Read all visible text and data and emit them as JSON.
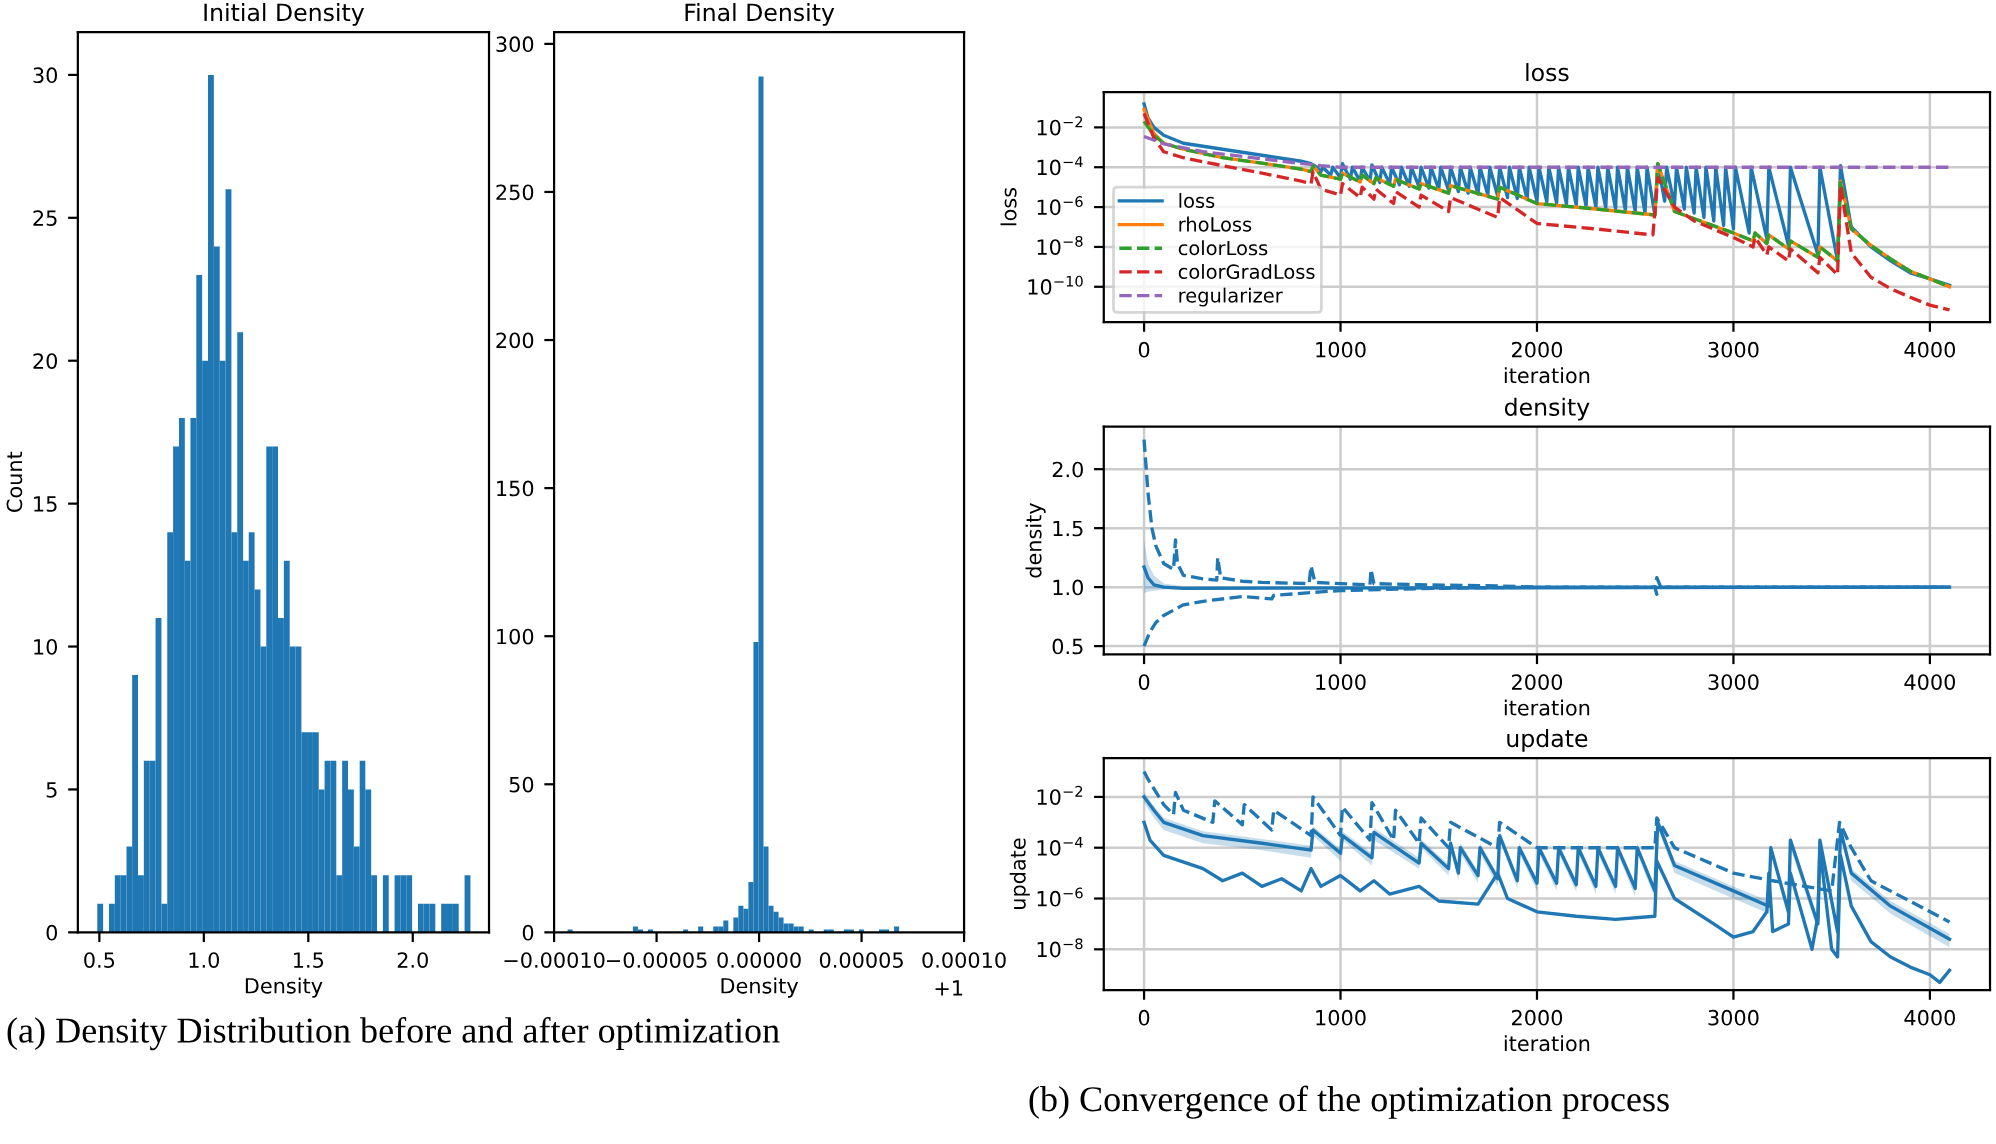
{
  "chart_data": [
    {
      "type": "histogram",
      "title": "Initial Density",
      "xlabel": "Density",
      "ylabel": "Count",
      "color": "#1f77b4",
      "grid": false,
      "bins": [
        0.49,
        0.518,
        0.546,
        0.574,
        0.602,
        0.63,
        0.657,
        0.685,
        0.713,
        0.741,
        0.769,
        0.797,
        0.825,
        0.853,
        0.881,
        0.909,
        0.936,
        0.964,
        0.992,
        1.02,
        1.048,
        1.076,
        1.104,
        1.132,
        1.16,
        1.188,
        1.215,
        1.243,
        1.271,
        1.299,
        1.327,
        1.355,
        1.383,
        1.411,
        1.439,
        1.467,
        1.494,
        1.522,
        1.55,
        1.578,
        1.606,
        1.634,
        1.662,
        1.69,
        1.718,
        1.746,
        1.773,
        1.801,
        1.829,
        1.857,
        1.885,
        1.913,
        1.941,
        1.969,
        1.997,
        2.025,
        2.052,
        2.08,
        2.108,
        2.136,
        2.164,
        2.192,
        2.22,
        2.248,
        2.276
      ],
      "values": [
        1,
        0,
        1,
        2,
        2,
        3,
        9,
        2,
        6,
        6,
        11,
        1,
        14,
        17,
        18,
        13,
        18,
        23,
        20,
        30,
        24,
        20,
        26,
        14,
        21,
        13,
        14,
        12,
        10,
        17,
        17,
        11,
        13,
        10,
        10,
        7,
        7,
        7,
        5,
        6,
        6,
        2,
        6,
        5,
        3,
        6,
        5,
        2,
        0,
        2,
        0,
        2,
        2,
        2,
        0,
        1,
        1,
        1,
        0,
        1,
        1,
        1,
        0,
        2
      ],
      "xlim": [
        0.397,
        2.365
      ],
      "ylim": [
        0,
        31.5
      ],
      "xticks": [
        0.5,
        {
          "value": 1,
          "label": "1.0"
        },
        1.5,
        {
          "value": 2,
          "label": "2.0"
        }
      ],
      "yticks": [
        0,
        5,
        10,
        15,
        20,
        25,
        30
      ],
      "annotations": [
        "(a) Density Distribution before and after optimization"
      ]
    },
    {
      "type": "histogram",
      "title": "Final Density",
      "xlabel": "Density",
      "color": "#1f77b4",
      "grid": false,
      "bins": [
        -9.34e-05,
        -9.095e-05,
        -8.85e-05,
        -8.605e-05,
        -8.36e-05,
        -8.115e-05,
        -7.87e-05,
        -7.625e-05,
        -7.38e-05,
        -7.135e-05,
        -6.89e-05,
        -6.645e-05,
        -6.4e-05,
        -6.155e-05,
        -5.91e-05,
        -5.665e-05,
        -5.42e-05,
        -5.175e-05,
        -4.93e-05,
        -4.685e-05,
        -4.44e-05,
        -4.195e-05,
        -3.95e-05,
        -3.705e-05,
        -3.46e-05,
        -3.215e-05,
        -2.97e-05,
        -2.725e-05,
        -2.48e-05,
        -2.235e-05,
        -1.99e-05,
        -1.745e-05,
        -1.5e-05,
        -1.255e-05,
        -1.01e-05,
        -7.65e-06,
        -5.2e-06,
        -2.75e-06,
        -3e-07,
        2.15e-06,
        4.6e-06,
        7.05e-06,
        9.5e-06,
        1.195e-05,
        1.44e-05,
        1.685e-05,
        1.93e-05,
        2.175e-05,
        2.42e-05,
        2.665e-05,
        2.91e-05,
        3.155e-05,
        3.4e-05,
        3.645e-05,
        3.89e-05,
        4.135e-05,
        4.38e-05,
        4.625e-05,
        4.87e-05,
        5.115e-05,
        5.36e-05,
        5.605e-05,
        5.85e-05,
        6.095e-05,
        6.34e-05,
        6.585e-05,
        6.83e-05
      ],
      "values": [
        1,
        0,
        0,
        0,
        0,
        0,
        0,
        0,
        0,
        0,
        0,
        0,
        0,
        2,
        1,
        0,
        1,
        0,
        0,
        0,
        0,
        0,
        0,
        1,
        0,
        0,
        2,
        0,
        0,
        2,
        2,
        4,
        0,
        5,
        9,
        8,
        17,
        98,
        289,
        29,
        9,
        7,
        5,
        3,
        3,
        2,
        2,
        0,
        1,
        0,
        0,
        1,
        1,
        0,
        0,
        1,
        1,
        0,
        1,
        0,
        0,
        0,
        1,
        1,
        0,
        2
      ],
      "xlim": [
        -0.0001,
        0.0001
      ],
      "ylim": [
        0,
        304
      ],
      "xticks": [
        {
          "value": -0.0001,
          "label": "−0.00010"
        },
        {
          "value": -5e-05,
          "label": "−0.00005"
        },
        {
          "value": 0,
          "label": "0.00000"
        },
        {
          "value": 5e-05,
          "label": "0.00005"
        },
        {
          "value": 0.0001,
          "label": "0.00010"
        }
      ],
      "yticks": [
        0,
        50,
        100,
        150,
        200,
        250,
        300
      ],
      "annotations": [
        "+1"
      ]
    },
    {
      "type": "line",
      "title": "loss",
      "xlabel": "iteration",
      "ylabel": "loss",
      "log": "y",
      "grid": true,
      "legend": "lower left",
      "xlim": [
        -205,
        4306
      ],
      "ylim": [
        1.7e-12,
        0.59
      ],
      "xticks": [
        0,
        1000,
        2000,
        3000,
        4000
      ],
      "yticks": [
        {
          "value": 0.01,
          "label": "10$^{−2}$"
        },
        {
          "value": 0.0001,
          "label": "10$^{−4}$"
        },
        {
          "value": 1e-06,
          "label": "10$^{−6}$"
        },
        {
          "value": 1e-08,
          "label": "10$^{−8}$"
        },
        {
          "value": 1e-10,
          "label": "10$^{−10}$"
        }
      ],
      "annotations": [
        "(b) Convergence of the optimization process"
      ],
      "series": [
        {
          "name": "loss",
          "color": "#1f77b4",
          "line_style": "solid",
          "x": [
            0,
            20,
            50,
            100,
            200,
            400,
            600,
            800,
            850,
            880,
            900,
            910,
            950,
            960,
            1000,
            1010,
            1050,
            1060,
            1100,
            1110,
            1150,
            1160,
            1200,
            1210,
            1250,
            1260,
            1300,
            1310,
            1350,
            1360,
            1400,
            1410,
            1450,
            1460,
            1500,
            1510,
            1550,
            1560,
            1600,
            1610,
            1650,
            1660,
            1700,
            1710,
            1750,
            1760,
            1800,
            1810,
            1850,
            1860,
            1900,
            1910,
            1950,
            1960,
            2000,
            2010,
            2050,
            2060,
            2100,
            2110,
            2150,
            2160,
            2200,
            2210,
            2250,
            2260,
            2300,
            2310,
            2350,
            2360,
            2400,
            2410,
            2450,
            2460,
            2500,
            2510,
            2550,
            2560,
            2600,
            2615,
            2650,
            2660,
            2700,
            2710,
            2750,
            2760,
            2800,
            2810,
            2850,
            2860,
            2900,
            2910,
            2950,
            2960,
            3000,
            3010,
            3080,
            3090,
            3170,
            3180,
            3280,
            3290,
            3430,
            3440,
            3530,
            3545,
            3600,
            3700,
            3800,
            3900,
            4000,
            4100
          ],
          "values": [
            0.15,
            0.03,
            0.01,
            0.004,
            0.0016,
            0.0008,
            0.0004,
            0.0002,
            0.00015,
            0.0001,
            6e-05,
            0.0001,
            4e-05,
            0.0001,
            3e-05,
            0.00015,
            2.5e-05,
            0.0001,
            2e-05,
            0.0001,
            2e-05,
            0.00013,
            1.7e-05,
            0.0001,
            1.5e-05,
            0.0001,
            1.3e-05,
            0.0001,
            1.1e-05,
            0.0001,
            1e-05,
            0.0001,
            9e-06,
            0.0001,
            8e-06,
            0.0001,
            7e-06,
            0.0001,
            6e-06,
            0.0001,
            5e-06,
            0.0001,
            4.5e-06,
            0.0001,
            4e-06,
            0.0001,
            3.5e-06,
            0.0001,
            3e-06,
            0.0001,
            2.7e-06,
            0.0001,
            2.4e-06,
            0.0001,
            2e-06,
            0.0001,
            1.8e-06,
            0.0001,
            1.6e-06,
            0.0001,
            1.4e-06,
            0.0001,
            1.2e-06,
            0.0001,
            1.1e-06,
            0.0001,
            1e-06,
            0.0001,
            9e-07,
            0.0001,
            8e-07,
            0.0001,
            7e-07,
            0.0001,
            6e-07,
            0.0001,
            5e-07,
            0.0001,
            4e-07,
            0.00015,
            2e-06,
            0.0001,
            1.2e-06,
            0.0001,
            8e-07,
            0.0001,
            5e-07,
            0.0001,
            3e-07,
            0.0001,
            2e-07,
            0.0001,
            1.2e-07,
            0.0001,
            8e-08,
            0.0001,
            5e-08,
            0.0001,
            2.5e-08,
            0.0001,
            1.2e-08,
            0.0001,
            4e-09,
            0.0001,
            2e-09,
            0.00012,
            1e-07,
            1e-08,
            2e-09,
            5e-10,
            2.5e-10,
            1.2e-10
          ]
        },
        {
          "name": "rhoLoss",
          "color": "#ff7f0e",
          "line_style": "solid",
          "x": [
            0,
            50,
            100,
            200,
            400,
            600,
            800,
            850,
            860,
            900,
            1000,
            1010,
            1100,
            1110,
            1170,
            1180,
            1270,
            1280,
            1400,
            1410,
            1550,
            1560,
            1800,
            1810,
            2000,
            2300,
            2600,
            2615,
            2700,
            3000,
            3100,
            3110,
            3170,
            3180,
            3280,
            3290,
            3430,
            3440,
            3530,
            3545,
            3600,
            3700,
            3800,
            3900,
            4000,
            4100
          ],
          "values": [
            0.08,
            0.005,
            0.0016,
            0.0008,
            0.0003,
            0.00016,
            8e-05,
            6e-05,
            0.00012,
            4e-05,
            2.5e-05,
            5e-05,
            1.8e-05,
            4e-05,
            1.5e-05,
            3e-05,
            1.1e-05,
            2.5e-05,
            8e-06,
            1.5e-05,
            5e-06,
            1.2e-05,
            2.5e-06,
            1e-05,
            1.5e-06,
            8e-07,
            4e-07,
            0.00015,
            6e-07,
            5e-08,
            2e-08,
            5e-08,
            1.5e-08,
            4e-08,
            8e-09,
            2e-08,
            3e-09,
            1e-08,
            2e-09,
            2e-05,
            8e-08,
            1.2e-08,
            2.5e-09,
            6e-10,
            2.5e-10,
            1e-10
          ]
        },
        {
          "name": "colorLoss",
          "color": "#2ca02c",
          "line_style": "dashed",
          "x": [
            0,
            50,
            100,
            200,
            400,
            600,
            800,
            850,
            860,
            900,
            1000,
            1010,
            1100,
            1110,
            1170,
            1180,
            1270,
            1280,
            1400,
            1410,
            1550,
            1560,
            1800,
            1810,
            2000,
            2300,
            2600,
            2615,
            2700,
            3000,
            3100,
            3110,
            3170,
            3180,
            3280,
            3290,
            3430,
            3440,
            3530,
            3545,
            3600,
            3700,
            3800,
            3900,
            4000,
            4100
          ],
          "values": [
            0.02,
            0.004,
            0.0016,
            0.0008,
            0.0003,
            0.00016,
            8e-05,
            6e-05,
            0.00012,
            4e-05,
            2.5e-05,
            5e-05,
            1.8e-05,
            4e-05,
            1.5e-05,
            3e-05,
            1.1e-05,
            2.5e-05,
            8e-06,
            1.5e-05,
            5e-06,
            1.2e-05,
            2.5e-06,
            1e-05,
            1.5e-06,
            8e-07,
            4e-07,
            0.00015,
            6e-07,
            5e-08,
            2e-08,
            5e-08,
            1.5e-08,
            4e-08,
            8e-09,
            2e-08,
            3e-09,
            1e-08,
            2e-09,
            2e-05,
            8e-08,
            1.2e-08,
            2.5e-09,
            6e-10,
            2.5e-10,
            1e-10
          ]
        },
        {
          "name": "colorGradLoss",
          "color": "#d62728",
          "line_style": "dashed",
          "x": [
            0,
            50,
            100,
            200,
            400,
            600,
            800,
            850,
            860,
            900,
            1000,
            1010,
            1100,
            1110,
            1170,
            1180,
            1270,
            1280,
            1400,
            1410,
            1550,
            1560,
            1800,
            1810,
            2000,
            2300,
            2590,
            2615,
            2700,
            2800,
            3000,
            3100,
            3110,
            3170,
            3180,
            3280,
            3290,
            3430,
            3440,
            3530,
            3545,
            3600,
            3700,
            3800,
            3900,
            4000,
            4100
          ],
          "values": [
            0.05,
            0.003,
            0.0006,
            0.0003,
            0.00012,
            5e-05,
            2e-05,
            1.5e-05,
            6e-05,
            8e-06,
            4e-06,
            1.5e-05,
            3e-06,
            1e-05,
            2.5e-06,
            8e-06,
            1.5e-06,
            6e-06,
            1e-06,
            4e-06,
            6e-07,
            3e-06,
            3e-07,
            3e-06,
            1.5e-07,
            8e-08,
            4e-08,
            3e-05,
            1e-06,
            2e-07,
            3e-08,
            1e-08,
            3e-08,
            4e-09,
            1e-08,
            2e-09,
            8e-09,
            5e-10,
            3e-09,
            4e-10,
            1.2e-05,
            5e-09,
            3e-10,
            8e-11,
            3e-11,
            1.2e-11,
            7e-12
          ]
        },
        {
          "name": "regularizer",
          "color": "#9467bd",
          "line_style": "dashed",
          "x": [
            0,
            100,
            300,
            500,
            700,
            900,
            1000,
            4100
          ],
          "values": [
            0.0035,
            0.0015,
            0.0006,
            0.00035,
            0.0002,
            0.00012,
            0.0001,
            0.0001
          ]
        }
      ]
    },
    {
      "type": "line",
      "title": "density",
      "xlabel": "iteration",
      "ylabel": "density",
      "grid": true,
      "xlim": [
        -205,
        4306
      ],
      "ylim": [
        0.43,
        2.36
      ],
      "xticks": [
        0,
        1000,
        2000,
        3000,
        4000
      ],
      "yticks": [
        0.5,
        {
          "value": 1,
          "label": "1.0"
        },
        1.5,
        {
          "value": 2,
          "label": "2.0"
        }
      ],
      "series": [
        {
          "color": "#1f77b4",
          "line_style": "solid",
          "x": [
            0,
            20,
            50,
            100,
            200,
            4100
          ],
          "values": [
            1.17,
            1.08,
            1.02,
            1.0,
            0.99,
            1.0
          ],
          "lower": [
            0.95,
            0.96,
            0.97,
            0.98,
            0.98,
            1.0
          ],
          "upper": [
            1.4,
            1.2,
            1.1,
            1.03,
            1.01,
            1.0
          ]
        },
        {
          "color": "#1f77b4",
          "line_style": "dashed",
          "x": [
            0,
            20,
            40,
            60,
            100,
            150,
            160,
            170,
            200,
            300,
            370,
            375,
            390,
            500,
            600,
            840,
            850,
            870,
            1000,
            1150,
            1155,
            1170,
            1400,
            1800,
            2000,
            2600,
            2610,
            2630,
            4100
          ],
          "values": [
            2.25,
            1.8,
            1.5,
            1.35,
            1.2,
            1.15,
            1.4,
            1.2,
            1.1,
            1.07,
            1.06,
            1.25,
            1.08,
            1.05,
            1.04,
            1.03,
            1.18,
            1.04,
            1.03,
            1.02,
            1.15,
            1.03,
            1.02,
            1.01,
            1.0,
            1.0,
            1.08,
            1.0,
            1.0
          ]
        },
        {
          "color": "#1f77b4",
          "line_style": "dashed",
          "x": [
            0,
            30,
            60,
            100,
            200,
            300,
            500,
            650,
            660,
            900,
            1000,
            1200,
            1500,
            2000,
            2600,
            2610,
            2630,
            4100
          ],
          "values": [
            0.5,
            0.62,
            0.7,
            0.76,
            0.85,
            0.88,
            0.92,
            0.9,
            0.93,
            0.96,
            0.97,
            0.98,
            0.99,
            1.0,
            1.0,
            0.94,
            1.0,
            1.0
          ]
        }
      ]
    },
    {
      "type": "line",
      "title": "update",
      "xlabel": "iteration",
      "ylabel": "update",
      "log": "y",
      "grid": true,
      "xlim": [
        -205,
        4306
      ],
      "ylim": [
        2.5e-10,
        0.34
      ],
      "xticks": [
        0,
        1000,
        2000,
        3000,
        4000
      ],
      "yticks": [
        {
          "value": 0.01,
          "label": "10$^{−2}$"
        },
        {
          "value": 0.0001,
          "label": "10$^{−4}$"
        },
        {
          "value": 1e-06,
          "label": "10$^{−6}$"
        },
        {
          "value": 1e-08,
          "label": "10$^{−8}$"
        }
      ],
      "series": [
        {
          "color": "#1f77b4",
          "line_style": "dashed",
          "x": [
            0,
            20,
            100,
            150,
            160,
            200,
            350,
            360,
            500,
            510,
            650,
            660,
            850,
            860,
            1000,
            1010,
            1150,
            1160,
            1270,
            1280,
            1400,
            1410,
            1550,
            1560,
            1800,
            1810,
            2000,
            2600,
            2610,
            2700,
            3000,
            3200,
            3500,
            3540,
            3600,
            3700,
            4100
          ],
          "values": [
            0.1,
            0.05,
            0.005,
            0.002,
            0.015,
            0.003,
            0.001,
            0.007,
            0.0008,
            0.005,
            0.0005,
            0.003,
            0.0003,
            0.01,
            0.0003,
            0.004,
            0.0002,
            0.006,
            0.0002,
            0.003,
            0.00015,
            0.0015,
            0.0001,
            0.001,
            0.0001,
            0.001,
            0.0001,
            0.0001,
            0.0015,
            0.0001,
            1e-05,
            5e-06,
            2e-06,
            0.001,
            0.0001,
            5e-06,
            1.2e-07
          ]
        },
        {
          "color": "#1f77b4",
          "line_style": "solid",
          "x": [
            0,
            50,
            100,
            300,
            600,
            850,
            860,
            1000,
            1010,
            1160,
            1170,
            1400,
            1410,
            1550,
            1560,
            1600,
            1610,
            1700,
            1710,
            1800,
            1810,
            1900,
            1910,
            2000,
            2010,
            2100,
            2110,
            2200,
            2210,
            2300,
            2310,
            2400,
            2410,
            2500,
            2510,
            2600,
            2615,
            2700,
            3000,
            3180,
            3190,
            3280,
            3290,
            3430,
            3440,
            3530,
            3545,
            3600,
            3800,
            4100
          ],
          "values": [
            0.01,
            0.003,
            0.001,
            0.0003,
            0.00015,
            8e-05,
            0.0005,
            6e-05,
            0.0003,
            4e-05,
            0.0004,
            2.5e-05,
            0.00015,
            1.5e-05,
            0.00015,
            1e-05,
            0.0001,
            8e-06,
            0.0001,
            6e-06,
            0.0003,
            5e-06,
            0.0001,
            4e-06,
            0.0001,
            4e-06,
            0.0001,
            3.5e-06,
            0.0001,
            3e-06,
            0.0001,
            3e-06,
            0.0001,
            2.5e-06,
            0.0001,
            2e-06,
            0.001,
            2e-05,
            2e-06,
            5e-07,
            0.0001,
            3e-07,
            0.0002,
            1e-07,
            0.0002,
            5e-08,
            0.0005,
            1e-05,
            5e-07,
            2.5e-08
          ],
          "lower": [
            0.006,
            0.0015,
            0.0005,
            0.00015,
            8e-05,
            4e-05,
            0.0003,
            3e-05,
            0.0002,
            2e-05,
            0.0002,
            1.5e-05,
            0.0001,
            8e-06,
            0.0001,
            5e-06,
            6e-05,
            4e-06,
            6e-05,
            3e-06,
            0.0002,
            2.5e-06,
            6e-05,
            2e-06,
            6e-05,
            2e-06,
            6e-05,
            1.8e-06,
            6e-05,
            1.5e-06,
            6e-05,
            1.5e-06,
            6e-05,
            1.2e-06,
            6e-05,
            1e-06,
            0.0006,
            1e-05,
            1e-06,
            2.5e-07,
            6e-05,
            1.5e-07,
            0.0001,
            5e-08,
            0.0001,
            2.5e-08,
            0.0003,
            5e-06,
            2.5e-07,
            1.2e-08
          ],
          "upper": [
            0.015,
            0.0045,
            0.0015,
            0.00045,
            0.00022,
            0.00012,
            0.0007,
            9e-05,
            0.00045,
            6e-05,
            0.0006,
            4e-05,
            0.00022,
            2.2e-05,
            0.00022,
            1.5e-05,
            0.00015,
            1.2e-05,
            0.00015,
            9e-06,
            0.00045,
            7.5e-06,
            0.00015,
            6e-06,
            0.00015,
            6e-06,
            0.00015,
            5e-06,
            0.00015,
            4.5e-06,
            0.00015,
            4.5e-06,
            0.00015,
            4e-06,
            0.00015,
            3e-06,
            0.0015,
            3e-05,
            3e-06,
            8e-07,
            0.00015,
            4.5e-07,
            0.0003,
            1.5e-07,
            0.0003,
            8e-08,
            0.0007,
            1.5e-05,
            8e-07,
            4e-08
          ]
        },
        {
          "color": "#1f77b4",
          "line_style": "solid",
          "x": [
            0,
            30,
            100,
            300,
            400,
            500,
            600,
            700,
            800,
            850,
            900,
            1000,
            1100,
            1170,
            1250,
            1400,
            1500,
            1700,
            1800,
            1850,
            2000,
            2200,
            2400,
            2600,
            2610,
            2700,
            2900,
            3000,
            3100,
            3170,
            3180,
            3200,
            3280,
            3290,
            3400,
            3430,
            3440,
            3500,
            3530,
            3545,
            3600,
            3700,
            3800,
            3900,
            4000,
            4050,
            4100
          ],
          "values": [
            0.001,
            0.0002,
            5e-05,
            1.5e-05,
            5e-06,
            1e-05,
            3e-06,
            6e-06,
            2e-06,
            1.5e-05,
            3e-06,
            8e-06,
            2e-06,
            5e-06,
            1.5e-06,
            3e-06,
            8e-07,
            6e-07,
            1e-05,
            1e-06,
            3e-07,
            2e-07,
            1.5e-07,
            2e-07,
            3e-05,
            1e-06,
            1e-07,
            3e-08,
            5e-08,
            3e-07,
            1e-05,
            5e-08,
            1e-07,
            1e-05,
            1e-08,
            2e-07,
            0.0001,
            1e-08,
            5e-09,
            5e-05,
            5e-07,
            2e-08,
            5e-09,
            2e-09,
            1e-09,
            5e-10,
            1.5e-09
          ]
        }
      ]
    }
  ]
}
